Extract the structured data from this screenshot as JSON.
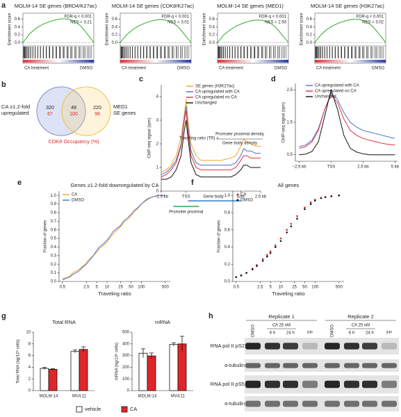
{
  "panels": {
    "a": {
      "letter": "a",
      "ylabel": "Enrichment score",
      "ylim": [
        -0.05,
        0.7
      ],
      "yticks": [
        {
          "value": 0,
          "label": "0.0"
        },
        {
          "value": 0.2,
          "label": "0.2"
        },
        {
          "value": 0.4,
          "label": "0.4"
        },
        {
          "value": 0.6,
          "label": "0.6"
        }
      ],
      "left_label": "CA treatment",
      "right_label": "DMSO",
      "plots": [
        {
          "title": "MOLM-14 SE genes (BRD4/K27ac)",
          "fdr": "FDR-q < 0.001",
          "nes": "NES = 3.21",
          "es": [
            0,
            0.22,
            0.36,
            0.46,
            0.53,
            0.58,
            0.61,
            0.6,
            0.55,
            0.42,
            0.22,
            0
          ]
        },
        {
          "title": "MOLM-14 SE genes (CDK8/K27ac)",
          "fdr": "FDR-q < 0.001",
          "nes": "NES = 3.01",
          "es": [
            0,
            0.2,
            0.34,
            0.44,
            0.51,
            0.56,
            0.59,
            0.58,
            0.53,
            0.4,
            0.2,
            0
          ]
        },
        {
          "title": "MOLM-14 SE genes (MED1)",
          "fdr": "FDR-q < 0.001",
          "nes": "NES = 2.93",
          "es": [
            0,
            0.2,
            0.33,
            0.43,
            0.5,
            0.55,
            0.58,
            0.57,
            0.52,
            0.4,
            0.2,
            0
          ]
        },
        {
          "title": "MOLM-14 SE genes (H3K27ac)",
          "fdr": "FDR-q < 0.001",
          "nes": "NES = 3.02",
          "es": [
            0,
            0.21,
            0.35,
            0.45,
            0.52,
            0.57,
            0.6,
            0.59,
            0.54,
            0.41,
            0.21,
            0
          ]
        }
      ]
    },
    "b": {
      "letter": "b",
      "left_text": [
        "CA ≥1.2-fold",
        "upregulated"
      ],
      "right_text": [
        "MED1",
        "SE genes"
      ],
      "regions": [
        {
          "count": 320,
          "pct": 67
        },
        {
          "count": 49,
          "pct": 100
        },
        {
          "count": 220,
          "pct": 98
        }
      ],
      "footer": "CDK8 Occupancy (%)"
    },
    "c": {
      "letter": "c",
      "ylabel": "ChIP-seq signal (rpm)",
      "ylim": [
        0,
        4.5
      ],
      "yticks": [
        0,
        1,
        2,
        3,
        4
      ],
      "xlim": [
        0,
        100
      ],
      "xticks": [
        {
          "value": 0,
          "label": "−2.5 kb"
        },
        {
          "value": 25,
          "label": "TSS"
        },
        {
          "value": 80,
          "label": "End"
        },
        {
          "value": 100,
          "label": "2.5 kb"
        }
      ],
      "gene_body": "Gene body",
      "promoter_proximal": "Promoter proximal",
      "tr_label": "Traveling ratio (TR) =",
      "tr_numerator": "Promoter proximal density",
      "tr_denominator": "Gene body density",
      "x": [
        0,
        5,
        10,
        15,
        20,
        23,
        25,
        27,
        30,
        35,
        40,
        50,
        60,
        70,
        75,
        80,
        83,
        86,
        90,
        95,
        100
      ],
      "series": [
        {
          "name": "SE genes (H3K27ac)",
          "color": "#f5a623",
          "values": [
            0.8,
            0.9,
            1.1,
            1.5,
            2.3,
            3.2,
            3.9,
            3.0,
            2.0,
            1.5,
            1.3,
            1.3,
            1.3,
            1.4,
            1.5,
            1.9,
            2.2,
            2.1,
            2.0,
            1.9,
            1.9
          ]
        },
        {
          "name": "CA upregulated with CA",
          "color": "#4a6fc7",
          "values": [
            0.7,
            0.8,
            1.0,
            1.3,
            2.0,
            3.0,
            3.6,
            2.7,
            1.7,
            1.2,
            1.1,
            1.1,
            1.1,
            1.1,
            1.2,
            1.5,
            1.8,
            1.7,
            1.7,
            1.6,
            1.6
          ]
        },
        {
          "name": "CA upregulated no CA",
          "color": "#e03040",
          "values": [
            0.6,
            0.7,
            0.9,
            1.2,
            1.9,
            2.9,
            3.4,
            2.5,
            1.5,
            1.0,
            0.9,
            0.9,
            0.9,
            0.9,
            1.0,
            1.3,
            1.5,
            1.5,
            1.4,
            1.4,
            1.4
          ]
        },
        {
          "name": "Unchanged",
          "color": "#111111",
          "values": [
            0.5,
            0.5,
            0.6,
            0.9,
            1.5,
            2.5,
            3.0,
            2.2,
            1.2,
            0.7,
            0.6,
            0.6,
            0.6,
            0.6,
            0.7,
            0.9,
            1.1,
            1.1,
            1.0,
            1.0,
            1.0
          ]
        }
      ]
    },
    "d": {
      "letter": "d",
      "ylabel": "ChIP-seq signal (rpm)",
      "ylim": [
        0.3,
        2.7
      ],
      "yticks": [
        0.5,
        1.5,
        2.5
      ],
      "xlim": [
        -2.8,
        5.2
      ],
      "xticks": [
        {
          "value": -2.5,
          "label": "−2.5 kb"
        },
        {
          "value": 0,
          "label": "TSS"
        },
        {
          "value": 2.5,
          "label": "2.5 kb"
        },
        {
          "value": 5,
          "label": "5 kb"
        }
      ],
      "x": [
        -2.5,
        -2,
        -1.5,
        -1,
        -0.5,
        0,
        0.5,
        1,
        1.5,
        2,
        2.5,
        3,
        3.5,
        4,
        4.5,
        5
      ],
      "series": [
        {
          "name": "CA upregulated with CA",
          "color": "#4a6fc7",
          "values": [
            0.75,
            0.8,
            0.95,
            1.3,
            1.9,
            2.4,
            2.2,
            1.8,
            1.5,
            1.35,
            1.25,
            1.2,
            1.15,
            1.1,
            1.05,
            1.0
          ]
        },
        {
          "name": "CA upregulated no CA",
          "color": "#e03040",
          "values": [
            0.7,
            0.75,
            0.9,
            1.25,
            1.9,
            2.35,
            2.1,
            1.6,
            1.25,
            1.1,
            1.0,
            0.95,
            0.9,
            0.85,
            0.82,
            0.8
          ]
        },
        {
          "name": "Unchanged",
          "color": "#111111",
          "values": [
            0.5,
            0.52,
            0.6,
            0.9,
            1.7,
            2.5,
            1.9,
            1.1,
            0.7,
            0.58,
            0.53,
            0.5,
            0.5,
            0.5,
            0.5,
            0.5
          ]
        }
      ]
    },
    "e": {
      "letter": "e",
      "title": "Genes ≥1.2-fold downregulated by CA",
      "xlabel": "Traveling ratio",
      "ylabel": "Fraction of genes",
      "log_x": true,
      "xlim": [
        0.4,
        700
      ],
      "xticks": [
        0.5,
        2.5,
        5,
        10,
        25,
        50,
        100,
        500
      ],
      "ylim": [
        0,
        1.05
      ],
      "yticks": [
        {
          "value": 0,
          "label": "0.0"
        },
        {
          "value": 0.1,
          "label": "0.1"
        },
        {
          "value": 0.2,
          "label": "0.2"
        },
        {
          "value": 0.3,
          "label": "0.3"
        },
        {
          "value": 0.4,
          "label": "0.4"
        },
        {
          "value": 0.5,
          "label": "0.5"
        },
        {
          "value": 0.6,
          "label": "0.6"
        },
        {
          "value": 0.7,
          "label": "0.7"
        },
        {
          "value": 0.8,
          "label": "0.8"
        },
        {
          "value": 0.9,
          "label": "0.9"
        },
        {
          "value": 1,
          "label": "1.0"
        }
      ],
      "x": [
        0.5,
        0.8,
        1,
        1.5,
        2,
        2.5,
        3,
        4,
        5,
        6,
        8,
        10,
        12,
        15,
        20,
        25,
        30,
        40,
        50,
        60,
        80,
        100,
        150,
        200,
        300,
        500
      ],
      "series": [
        {
          "name": "CA",
          "color": "#f5a623",
          "values": [
            0.03,
            0.06,
            0.1,
            0.14,
            0.18,
            0.22,
            0.26,
            0.3,
            0.34,
            0.38,
            0.42,
            0.46,
            0.5,
            0.55,
            0.6,
            0.64,
            0.68,
            0.72,
            0.76,
            0.8,
            0.85,
            0.9,
            0.95,
            0.98,
            1.0,
            1.0
          ]
        },
        {
          "name": "DMSO",
          "color": "#4a6fc7",
          "values": [
            0.02,
            0.05,
            0.08,
            0.12,
            0.17,
            0.2,
            0.24,
            0.3,
            0.36,
            0.4,
            0.44,
            0.48,
            0.52,
            0.58,
            0.62,
            0.65,
            0.7,
            0.74,
            0.78,
            0.82,
            0.86,
            0.9,
            0.96,
            0.98,
            1.0,
            1.0
          ]
        }
      ]
    },
    "f": {
      "letter": "f",
      "title": "All genes",
      "xlabel": "Traveling ratio",
      "ylabel": "Fraction of genes",
      "log_x": true,
      "xlim": [
        0.4,
        700
      ],
      "xticks": [
        0.5,
        2.5,
        5,
        10,
        25,
        50,
        100,
        500
      ],
      "ylim": [
        0,
        1.05
      ],
      "yticks": [
        {
          "value": 0,
          "label": "0.0"
        },
        {
          "value": 0.2,
          "label": "0.2"
        },
        {
          "value": 0.4,
          "label": "0.4"
        },
        {
          "value": 0.6,
          "label": "0.6"
        },
        {
          "value": 0.8,
          "label": "0.8"
        },
        {
          "value": 1,
          "label": "1.0"
        }
      ],
      "x": [
        0.5,
        0.7,
        1,
        1.5,
        2,
        3,
        4,
        5,
        7,
        10,
        15,
        20,
        30,
        50,
        75,
        100,
        150,
        200,
        300,
        500
      ],
      "series": [
        {
          "name": "CA",
          "color": "#e0262a",
          "values": [
            0.05,
            0.07,
            0.1,
            0.15,
            0.19,
            0.26,
            0.31,
            0.35,
            0.42,
            0.5,
            0.6,
            0.67,
            0.76,
            0.86,
            0.92,
            0.95,
            0.97,
            0.98,
            0.99,
            1.0
          ]
        },
        {
          "name": "DMSO",
          "color": "#111111",
          "values": [
            0.05,
            0.07,
            0.1,
            0.14,
            0.18,
            0.24,
            0.29,
            0.33,
            0.4,
            0.47,
            0.57,
            0.64,
            0.73,
            0.84,
            0.9,
            0.94,
            0.97,
            0.98,
            0.99,
            1.0
          ]
        }
      ]
    },
    "g": {
      "letter": "g",
      "charts": [
        {
          "title": "Total RNA",
          "ylabel": "Total RNA (ng/10⁶ cells)",
          "ylim": [
            0,
            10
          ],
          "yticks": [
            0,
            2,
            4,
            6,
            8,
            10
          ],
          "categories": [
            "MOLM-14",
            "MV4;11"
          ],
          "series": [
            {
              "name": "vehicle",
              "color": "#ffffff",
              "values": [
                3.8,
                6.7
              ],
              "errors": [
                0.15,
                0.25
              ]
            },
            {
              "name": "CA",
              "color": "#e0262a",
              "values": [
                3.65,
                7.05
              ],
              "errors": [
                0.1,
                0.45
              ]
            }
          ]
        },
        {
          "title": "mRNA",
          "ylabel": "mRNA (ng/10⁶ cells)",
          "ylim": [
            0,
            500
          ],
          "yticks": [
            0,
            100,
            200,
            300,
            400,
            500
          ],
          "categories": [
            "MOLM-14",
            "MV4;11"
          ],
          "series": [
            {
              "name": "vehicle",
              "color": "#ffffff",
              "values": [
                320,
                395
              ],
              "errors": [
                38,
                15
              ]
            },
            {
              "name": "CA",
              "color": "#e0262a",
              "values": [
                297,
                400
              ],
              "errors": [
                25,
                65
              ]
            }
          ]
        }
      ]
    },
    "h": {
      "letter": "h",
      "replicates": [
        "Replicate 1",
        "Replicate 2"
      ],
      "dmso": "DMSO",
      "ca": "CA 25 nM",
      "times": [
        "6 h",
        "24 h"
      ],
      "fp": "FP",
      "rows": [
        "RNA pol II pS2",
        "α-tubulin",
        "RNA pol II pS5",
        "α-tubulin"
      ]
    }
  }
}
